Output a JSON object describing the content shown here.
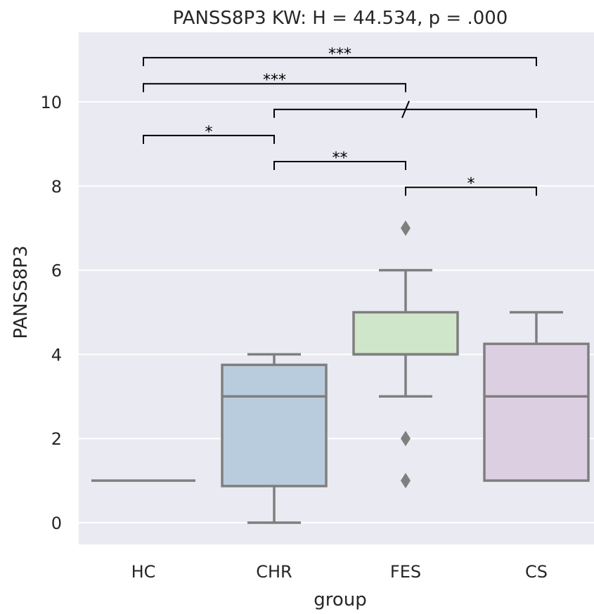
{
  "chart_data": {
    "type": "box",
    "title": "PANSS8P3 KW: H = 44.534, p = .000",
    "xlabel": "group",
    "ylabel": "PANSS8P3",
    "categories": [
      "HC",
      "CHR",
      "FES",
      "CS"
    ],
    "yticks": [
      "0",
      "2",
      "4",
      "6",
      "8",
      "10"
    ],
    "ylim": [
      -0.5,
      12.0
    ],
    "grid": true,
    "boxes": [
      {
        "group": "HC",
        "whisker_low": 1,
        "q1": 1,
        "median": 1,
        "q3": 1,
        "whisker_high": 1,
        "outliers": [],
        "color": "#c7c7c7"
      },
      {
        "group": "CHR",
        "whisker_low": 0,
        "q1": 0.87,
        "median": 3,
        "q3": 3.75,
        "whisker_high": 4,
        "outliers": [],
        "color": "#b9ccdd"
      },
      {
        "group": "FES",
        "whisker_low": 3,
        "q1": 4,
        "median": 4,
        "q3": 5,
        "whisker_high": 6,
        "outliers": [
          7,
          2,
          1
        ],
        "color": "#d0e6ca"
      },
      {
        "group": "CS",
        "whisker_low": 1,
        "q1": 1,
        "median": 3,
        "q3": 4.25,
        "whisker_high": 5,
        "outliers": [],
        "color": "#ddcfe2"
      }
    ],
    "significance": [
      {
        "from": "HC",
        "to": "CS",
        "y": 11.05,
        "label": "***"
      },
      {
        "from": "HC",
        "to": "FES",
        "y": 10.43,
        "label": "***"
      },
      {
        "from": "CHR",
        "to": "CS",
        "y": 9.82,
        "label": "",
        "break_marker": true
      },
      {
        "from": "HC",
        "to": "CHR",
        "y": 9.2,
        "label": "*"
      },
      {
        "from": "CHR",
        "to": "FES",
        "y": 8.58,
        "label": "**"
      },
      {
        "from": "FES",
        "to": "CS",
        "y": 7.97,
        "label": "*"
      }
    ],
    "colors": {
      "plot_background": "#eaeaf2",
      "grid": "#ffffff",
      "box_edge": "#7f7f7f",
      "outlier": "#7f7f7f"
    }
  }
}
